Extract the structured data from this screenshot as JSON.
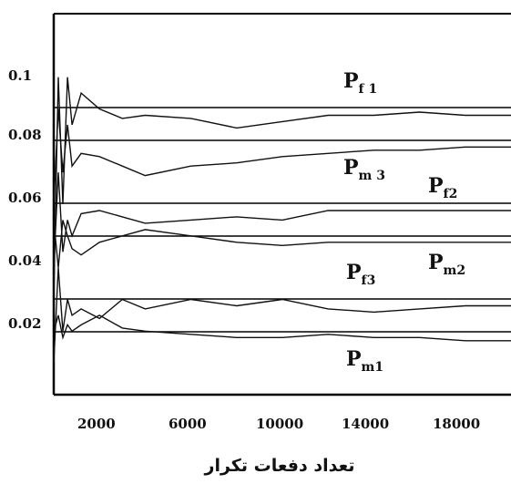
{
  "chart_data": {
    "type": "line",
    "title": "",
    "xlabel": "تعداد دفعات تکرار",
    "ylabel": "",
    "xlim": [
      0,
      20000
    ],
    "ylim": [
      0,
      0.12
    ],
    "x_ticks": [
      "2000",
      "6000",
      "10000",
      "14000",
      "18000"
    ],
    "y_ticks": [
      "0.1",
      "0.08",
      "0.06",
      "0.04",
      "0.02"
    ],
    "grid": false,
    "reference_levels": [
      0.088,
      0.078,
      0.058,
      0.048,
      0.028,
      0.018
    ],
    "labels": [
      {
        "main": "P",
        "sub": "f 1"
      },
      {
        "main": "P",
        "sub": "m 3"
      },
      {
        "main": "P",
        "sub": "f2"
      },
      {
        "main": "P",
        "sub": "f3"
      },
      {
        "main": "P",
        "sub": "m2"
      },
      {
        "main": "P",
        "sub": "m1"
      }
    ],
    "series": [
      {
        "x": [
          0,
          200,
          400,
          600,
          800,
          1200,
          2000,
          3000,
          4000,
          6000,
          8000,
          10000,
          12000,
          14000,
          16000,
          18000,
          20000
        ],
        "y": [
          0.03,
          0.1,
          0.06,
          0.1,
          0.085,
          0.095,
          0.09,
          0.087,
          0.088,
          0.087,
          0.084,
          0.086,
          0.088,
          0.088,
          0.089,
          0.088,
          0.088
        ]
      },
      {
        "x": [
          0,
          200,
          400,
          600,
          800,
          1200,
          2000,
          3000,
          4000,
          6000,
          8000,
          10000,
          12000,
          14000,
          16000,
          18000,
          20000
        ],
        "y": [
          0.06,
          0.09,
          0.07,
          0.085,
          0.072,
          0.076,
          0.075,
          0.072,
          0.069,
          0.072,
          0.073,
          0.075,
          0.076,
          0.077,
          0.077,
          0.078,
          0.078
        ]
      },
      {
        "x": [
          0,
          200,
          400,
          600,
          800,
          1200,
          2000,
          3000,
          4000,
          6000,
          8000,
          10000,
          12000,
          14000,
          16000,
          18000,
          20000
        ],
        "y": [
          0.04,
          0.07,
          0.045,
          0.055,
          0.05,
          0.057,
          0.058,
          0.056,
          0.054,
          0.055,
          0.056,
          0.055,
          0.058,
          0.058,
          0.058,
          0.058,
          0.058
        ]
      },
      {
        "x": [
          0,
          200,
          400,
          600,
          800,
          1200,
          2000,
          3000,
          4000,
          6000,
          8000,
          10000,
          12000,
          14000,
          16000,
          18000,
          20000
        ],
        "y": [
          0.055,
          0.04,
          0.055,
          0.05,
          0.046,
          0.044,
          0.048,
          0.05,
          0.052,
          0.05,
          0.048,
          0.047,
          0.048,
          0.048,
          0.048,
          0.048,
          0.048
        ]
      },
      {
        "x": [
          0,
          200,
          400,
          600,
          800,
          1200,
          2000,
          3000,
          4000,
          6000,
          8000,
          10000,
          12000,
          14000,
          16000,
          18000,
          20000
        ],
        "y": [
          0.01,
          0.04,
          0.02,
          0.03,
          0.025,
          0.027,
          0.024,
          0.03,
          0.027,
          0.03,
          0.028,
          0.03,
          0.027,
          0.026,
          0.027,
          0.028,
          0.028
        ]
      },
      {
        "x": [
          0,
          200,
          400,
          600,
          800,
          1200,
          2000,
          3000,
          4000,
          6000,
          8000,
          10000,
          12000,
          14000,
          16000,
          18000,
          20000
        ],
        "y": [
          0.02,
          0.025,
          0.018,
          0.022,
          0.02,
          0.022,
          0.025,
          0.021,
          0.02,
          0.019,
          0.018,
          0.018,
          0.019,
          0.018,
          0.018,
          0.017,
          0.017
        ]
      }
    ]
  }
}
